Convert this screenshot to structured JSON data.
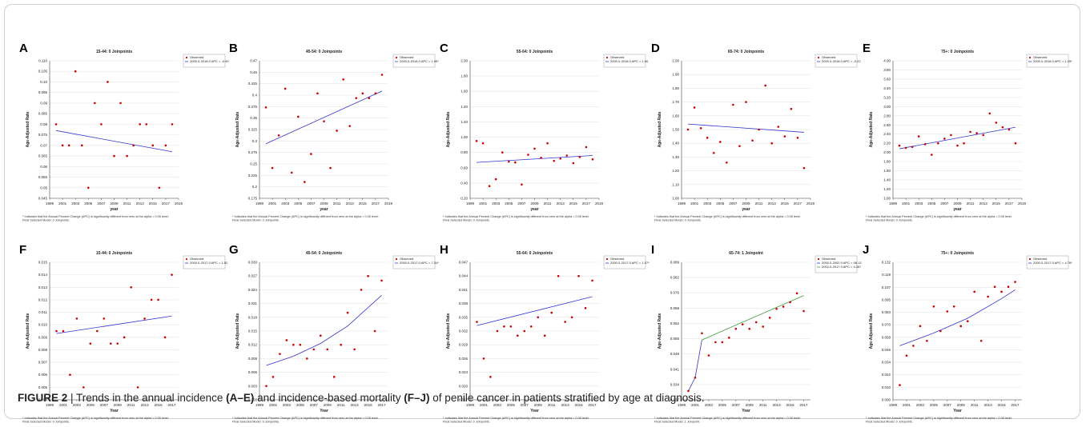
{
  "figure": {
    "caption_label": "FIGURE 2",
    "caption_sep": " | ",
    "caption_part1": "Trends in the annual incidence ",
    "caption_bold1": "(A–E)",
    "caption_part2": " and incidence-based mortality ",
    "caption_bold2": "(F–J)",
    "caption_part3": " of penile cancer in patients stratified by age at diagnosis."
  },
  "colors": {
    "points": "#cc0000",
    "fit": "#3333cc",
    "fit2": "#3c9a3c",
    "grid": "#e6e6e6",
    "axis": "#444444"
  },
  "chart_data": [
    {
      "panel": "A",
      "type": "scatter",
      "title": "15-44: 0 Joinpoints",
      "xlabel": "year",
      "ylabel": "Age-Adjusted Rate",
      "xlim": [
        1999,
        2019
      ],
      "ylim": [
        0.045,
        0.11
      ],
      "xticks": [
        1999,
        2001,
        2003,
        2005,
        2007,
        2009,
        2011,
        2013,
        2015,
        2017,
        2019
      ],
      "yticks": [
        "0.045",
        "0.05",
        "0.055",
        "0.06",
        "0.065",
        "0.07",
        "0.075",
        "0.08",
        "0.085",
        "0.09",
        "0.095",
        "0.10",
        "0.105",
        "0.110"
      ],
      "x": [
        2000,
        2001,
        2002,
        2003,
        2004,
        2005,
        2006,
        2007,
        2008,
        2009,
        2010,
        2011,
        2012,
        2013,
        2014,
        2015,
        2016,
        2017,
        2018
      ],
      "y": [
        0.08,
        0.07,
        0.07,
        0.105,
        0.07,
        0.05,
        0.09,
        0.08,
        0.1,
        0.065,
        0.09,
        0.065,
        0.07,
        0.08,
        0.08,
        0.07,
        0.05,
        0.07,
        0.08
      ],
      "fits": [
        {
          "segments": [
            [
              2000,
              0.077,
              2018,
              0.067
            ]
          ]
        }
      ],
      "legend": [
        "Observed",
        "2000.0-2018.0 APC = -0.90"
      ],
      "notes": [
        "* Indicates that the Annual Percent Change (APC) is significantly different from zero at the alpha = 0.05 level.",
        "Final Selected Model: 0 Joinpoints."
      ]
    },
    {
      "panel": "B",
      "type": "scatter",
      "title": "45-54: 0 Joinpoints",
      "xlabel": "year",
      "ylabel": "Age-Adjusted Rate",
      "xlim": [
        1999,
        2019
      ],
      "ylim": [
        0.175,
        0.47
      ],
      "xticks": [
        1999,
        2001,
        2003,
        2005,
        2007,
        2009,
        2011,
        2013,
        2015,
        2017,
        2019
      ],
      "yticks": [
        "0.175",
        "0.2",
        "0.225",
        "0.25",
        "0.275",
        "0.3",
        "0.325",
        "0.35",
        "0.375",
        "0.4",
        "0.425",
        "0.45",
        "0.47"
      ],
      "x": [
        2000,
        2001,
        2002,
        2003,
        2004,
        2005,
        2006,
        2007,
        2008,
        2009,
        2010,
        2011,
        2012,
        2013,
        2014,
        2015,
        2016,
        2017,
        2018
      ],
      "y": [
        0.37,
        0.24,
        0.31,
        0.41,
        0.23,
        0.35,
        0.21,
        0.27,
        0.4,
        0.34,
        0.24,
        0.32,
        0.43,
        0.33,
        0.39,
        0.4,
        0.39,
        0.4,
        0.44
      ],
      "fits": [
        {
          "segments": [
            [
              2000,
              0.292,
              2018,
              0.405
            ]
          ]
        }
      ],
      "legend": [
        "Observed",
        "2000.0-2018.0 APC = 1.95*"
      ],
      "notes": [
        "* Indicates that the Annual Percent Change (APC) is significantly different from zero at the alpha = 0.05 level.",
        "Final Selected Model: 0 Joinpoints."
      ]
    },
    {
      "panel": "C",
      "type": "scatter",
      "title": "55-64: 0 Joinpoints",
      "xlabel": "year",
      "ylabel": "Age-Adjusted Rate",
      "xlim": [
        1999,
        2019
      ],
      "ylim": [
        0.2,
        2.0
      ],
      "xticks": [
        1999,
        2001,
        2003,
        2005,
        2007,
        2009,
        2011,
        2013,
        2015,
        2017,
        2019
      ],
      "yticks": [
        "0.20",
        "0.40",
        "0.60",
        "0.80",
        "1.00",
        "1.20",
        "1.40",
        "1.60",
        "1.80",
        "2.00"
      ],
      "x": [
        2000,
        2001,
        2002,
        2003,
        2004,
        2005,
        2006,
        2007,
        2008,
        2009,
        2010,
        2011,
        2012,
        2013,
        2014,
        2015,
        2016,
        2017,
        2018
      ],
      "y": [
        0.95,
        0.92,
        0.36,
        0.45,
        0.8,
        0.68,
        0.67,
        0.38,
        0.77,
        0.85,
        0.73,
        0.92,
        0.69,
        0.72,
        0.76,
        0.66,
        0.74,
        0.87,
        0.71
      ],
      "fits": [
        {
          "segments": [
            [
              2000,
              0.67,
              2018,
              0.76
            ]
          ]
        }
      ],
      "legend": [
        "Observed",
        "2000.0-2018.0 APC = 1.00"
      ],
      "notes": [
        "* Indicates that the Annual Percent Change (APC) is significantly different from zero at the alpha = 0.05 level.",
        "Final Selected Model: 0 Joinpoints."
      ]
    },
    {
      "panel": "D",
      "type": "scatter",
      "title": "65-74: 0 Joinpoints",
      "xlabel": "year",
      "ylabel": "Age-Adjusted Rate",
      "xlim": [
        1999,
        2019
      ],
      "ylim": [
        1.0,
        2.0
      ],
      "xticks": [
        1999,
        2001,
        2003,
        2005,
        2007,
        2009,
        2011,
        2013,
        2015,
        2017,
        2019
      ],
      "yticks": [
        "1.00",
        "1.10",
        "1.20",
        "1.30",
        "1.40",
        "1.50",
        "1.60",
        "1.70",
        "1.80",
        "1.90",
        "2.00"
      ],
      "x": [
        2000,
        2001,
        2002,
        2003,
        2004,
        2005,
        2006,
        2007,
        2008,
        2009,
        2010,
        2011,
        2012,
        2013,
        2014,
        2015,
        2016,
        2017,
        2018
      ],
      "y": [
        1.5,
        1.66,
        1.51,
        1.44,
        1.33,
        1.41,
        1.26,
        1.68,
        1.38,
        1.7,
        1.42,
        1.5,
        1.82,
        1.4,
        1.52,
        1.45,
        1.65,
        1.44,
        1.22
      ],
      "fits": [
        {
          "segments": [
            [
              2000,
              1.54,
              2018,
              1.48
            ]
          ]
        }
      ],
      "legend": [
        "Observed",
        "2000.0-2018.0 APC = -0.22"
      ],
      "notes": [
        "* Indicates that the Annual Percent Change (APC) is significantly different from zero at the alpha = 0.05 level.",
        "Final Selected Model: 0 Joinpoints."
      ]
    },
    {
      "panel": "E",
      "type": "scatter",
      "title": "75+: 0 Joinpoints",
      "xlabel": "year",
      "ylabel": "Age-Adjusted Rate",
      "xlim": [
        1999,
        2019
      ],
      "ylim": [
        1.0,
        4.0
      ],
      "xticks": [
        1999,
        2001,
        2003,
        2005,
        2007,
        2009,
        2011,
        2013,
        2015,
        2017,
        2019
      ],
      "yticks": [
        "1.00",
        "1.20",
        "1.40",
        "1.60",
        "1.80",
        "2.00",
        "2.20",
        "2.40",
        "2.60",
        "2.80",
        "3.00",
        "3.20",
        "3.40",
        "3.60",
        "3.80",
        "4.00"
      ],
      "x": [
        2000,
        2001,
        2002,
        2003,
        2004,
        2005,
        2006,
        2007,
        2008,
        2009,
        2010,
        2011,
        2012,
        2013,
        2014,
        2015,
        2016,
        2017,
        2018
      ],
      "y": [
        2.15,
        2.1,
        2.12,
        2.35,
        2.18,
        1.95,
        2.2,
        2.3,
        2.38,
        2.15,
        2.2,
        2.45,
        2.42,
        2.38,
        2.85,
        2.65,
        2.55,
        2.5,
        2.2
      ],
      "fits": [
        {
          "segments": [
            [
              2000,
              2.08,
              2018,
              2.55
            ]
          ]
        }
      ],
      "legend": [
        "Observed",
        "2000.0-2018.0 APC = 1.25*"
      ],
      "notes": [
        "* Indicates that the Annual Percent Change (APC) is significantly different from zero at the alpha = 0.05 level.",
        "Final Selected Model: 0 Joinpoints."
      ]
    },
    {
      "panel": "F",
      "type": "scatter",
      "title": "15-44: 0 Joinpoints",
      "xlabel": "Year",
      "ylabel": "Age-Adjusted Rate",
      "xlim": [
        1999,
        2018
      ],
      "ylim": [
        0.004,
        0.015
      ],
      "xticks": [
        1999,
        2001,
        2003,
        2005,
        2007,
        2009,
        2011,
        2013,
        2015,
        2017
      ],
      "yticks": [
        "0.004",
        "0.005",
        "0.006",
        "0.007",
        "0.008",
        "0.009",
        "0.010",
        "0.011",
        "0.012",
        "0.013",
        "0.014",
        "0.015"
      ],
      "x": [
        2000,
        2001,
        2002,
        2003,
        2004,
        2005,
        2006,
        2007,
        2008,
        2009,
        2010,
        2011,
        2012,
        2013,
        2014,
        2015,
        2016,
        2017
      ],
      "y": [
        0.0095,
        0.0095,
        0.006,
        0.0105,
        0.005,
        0.0085,
        0.0095,
        0.0105,
        0.0085,
        0.0085,
        0.009,
        0.013,
        0.005,
        0.0105,
        0.012,
        0.012,
        0.009,
        0.014
      ],
      "fits": [
        {
          "segments": [
            [
              2000,
              0.0093,
              2017,
              0.0107
            ]
          ]
        }
      ],
      "legend": [
        "Observed",
        "2000.0-2017.0 APC = 1.52"
      ],
      "notes": [
        "* Indicates that the Annual Percent Change (APC) is significantly different from zero at the alpha = 0.05 level.",
        "Final Selected Model: 0 Joinpoints."
      ]
    },
    {
      "panel": "G",
      "type": "scatter",
      "title": "45-54: 0 Joinpoints",
      "xlabel": "Year",
      "ylabel": "Age-Adjusted Rate",
      "xlim": [
        1999,
        2018
      ],
      "ylim": [
        0.0,
        0.03
      ],
      "xticks": [
        1999,
        2001,
        2003,
        2005,
        2007,
        2009,
        2011,
        2013,
        2015,
        2017
      ],
      "yticks": [
        "0.000",
        "0.003",
        "0.006",
        "0.009",
        "0.012",
        "0.015",
        "0.018",
        "0.021",
        "0.024",
        "0.027",
        "0.030"
      ],
      "x": [
        2000,
        2001,
        2002,
        2003,
        2004,
        2005,
        2006,
        2007,
        2008,
        2009,
        2010,
        2011,
        2012,
        2013,
        2014,
        2015,
        2016,
        2017
      ],
      "y": [
        0.003,
        0.005,
        0.01,
        0.013,
        0.012,
        0.012,
        0.009,
        0.011,
        0.014,
        0.011,
        0.005,
        0.012,
        0.019,
        0.011,
        0.024,
        0.027,
        0.015,
        0.026
      ],
      "fits": [
        {
          "segments": [
            [
              2000,
              0.0075,
              2004,
              0.0095,
              2008,
              0.0123,
              2012,
              0.0161,
              2017,
              0.0228
            ]
          ]
        }
      ],
      "legend": [
        "Observed",
        "2000.0-2017.0 APC = 7.34*"
      ],
      "notes": [
        "* Indicates that the Annual Percent Change (APC) is significantly different from zero at the alpha = 0.05 level.",
        "Final Selected Model: 0 Joinpoints."
      ]
    },
    {
      "panel": "H",
      "type": "scatter",
      "title": "55-64: 0 Joinpoints",
      "xlabel": "Year",
      "ylabel": "Age-Adjusted Rate",
      "xlim": [
        1999,
        2018
      ],
      "ylim": [
        0.017,
        0.047
      ],
      "xticks": [
        1999,
        2001,
        2003,
        2005,
        2007,
        2009,
        2011,
        2013,
        2015,
        2017
      ],
      "yticks": [
        "0.017",
        "0.020",
        "0.023",
        "0.026",
        "0.029",
        "0.032",
        "0.035",
        "0.038",
        "0.041",
        "0.044",
        "0.047"
      ],
      "x": [
        2000,
        2001,
        2002,
        2003,
        2004,
        2005,
        2006,
        2007,
        2008,
        2009,
        2010,
        2011,
        2012,
        2013,
        2014,
        2015,
        2016,
        2017
      ],
      "y": [
        0.034,
        0.026,
        0.022,
        0.032,
        0.033,
        0.033,
        0.031,
        0.032,
        0.033,
        0.035,
        0.031,
        0.036,
        0.044,
        0.034,
        0.035,
        0.044,
        0.037,
        0.043
      ],
      "fits": [
        {
          "segments": [
            [
              2000,
              0.0332,
              2017,
              0.0395
            ]
          ]
        }
      ],
      "legend": [
        "Observed",
        "2000.0-2017.0 APC = 1.07*"
      ],
      "notes": [
        "* Indicates that the Annual Percent Change (APC) is significantly different from zero at the alpha = 0.05 level.",
        "Final Selected Model: 0 Joinpoints."
      ]
    },
    {
      "panel": "I",
      "type": "scatter",
      "title": "65-74: 1 Joinpoint",
      "xlabel": "Year",
      "ylabel": "Age-Adjusted Rate",
      "xlim": [
        1999,
        2018
      ],
      "ylim": [
        0.027,
        0.089
      ],
      "xticks": [
        1999,
        2001,
        2003,
        2005,
        2007,
        2009,
        2011,
        2013,
        2015,
        2017
      ],
      "yticks": [
        "0.027",
        "0.034",
        "0.041",
        "0.048",
        "0.055",
        "0.062",
        "0.069",
        "0.076",
        "0.082",
        "0.089"
      ],
      "x": [
        2000,
        2001,
        2002,
        2003,
        2004,
        2005,
        2006,
        2007,
        2008,
        2009,
        2010,
        2011,
        2012,
        2013,
        2014,
        2015,
        2016,
        2017
      ],
      "y": [
        0.031,
        0.037,
        0.057,
        0.047,
        0.053,
        0.053,
        0.055,
        0.059,
        0.061,
        0.059,
        0.062,
        0.06,
        0.064,
        0.068,
        0.069,
        0.071,
        0.075,
        0.067
      ],
      "fits": [
        {
          "segments": [
            [
              2000,
              0.031,
              2001,
              0.037,
              2002,
              0.054
            ]
          ]
        },
        {
          "segments": [
            [
              2002,
              0.054,
              2017,
              0.074
            ]
          ],
          "color": "fit2"
        }
      ],
      "legend": [
        "Observed",
        "2000.0-2002.0 APC = 98.13",
        "2002.0-2017.0 APC = 4.28*"
      ],
      "notes": [
        "* Indicates that the Annual Percent Change (APC) is significantly different from zero at the alpha = 0.05 level.",
        "Final Selected Model: 1 Joinpoint."
      ]
    },
    {
      "panel": "J",
      "type": "scatter",
      "title": "75+: 0 Joinpoints",
      "xlabel": "Year",
      "ylabel": "Age-Adjusted Rate",
      "xlim": [
        1999,
        2018
      ],
      "ylim": [
        0.0,
        0.14
      ],
      "xticks": [
        1999,
        2001,
        2003,
        2005,
        2007,
        2009,
        2011,
        2013,
        2015,
        2017
      ],
      "yticks": [
        "0.000",
        "0.010",
        "0.022",
        "0.034",
        "0.046",
        "0.058",
        "0.070",
        "0.083",
        "0.095",
        "0.107",
        "0.119",
        "0.132"
      ],
      "x": [
        2000,
        2001,
        2002,
        2003,
        2004,
        2005,
        2006,
        2007,
        2008,
        2009,
        2010,
        2011,
        2012,
        2013,
        2014,
        2015,
        2016,
        2017
      ],
      "y": [
        0.015,
        0.045,
        0.055,
        0.075,
        0.06,
        0.095,
        0.07,
        0.09,
        0.095,
        0.075,
        0.08,
        0.11,
        0.06,
        0.105,
        0.115,
        0.11,
        0.115,
        0.12
      ],
      "fits": [
        {
          "segments": [
            [
              2000,
              0.055,
              2005,
              0.068,
              2010,
              0.083,
              2015,
              0.103,
              2017,
              0.112
            ]
          ]
        }
      ],
      "legend": [
        "Observed",
        "2000.0-2017.0 APC = 4.76*"
      ],
      "notes": [
        "* Indicates that the Annual Percent Change (APC) is significantly different from zero at the alpha = 0.05 level.",
        "Final Selected Model: 0 Joinpoints."
      ]
    }
  ]
}
